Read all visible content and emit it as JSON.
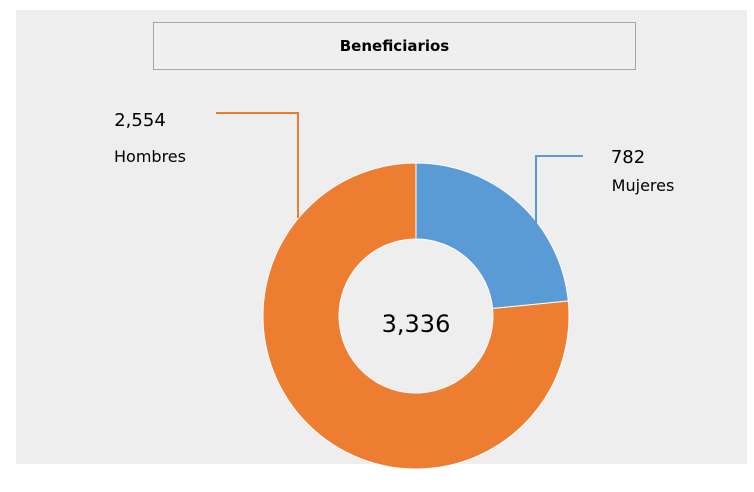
{
  "chart_data": {
    "type": "pie",
    "variant": "donut",
    "title": "Beneficiarios",
    "center_label": "3,336",
    "slices": [
      {
        "label": "Mujeres",
        "value": 782,
        "value_label": "782",
        "color": "#5b9bd5"
      },
      {
        "label": "Hombres",
        "value": 2554,
        "value_label": "2,554",
        "color": "#ed7d31"
      }
    ],
    "legend": "none"
  }
}
